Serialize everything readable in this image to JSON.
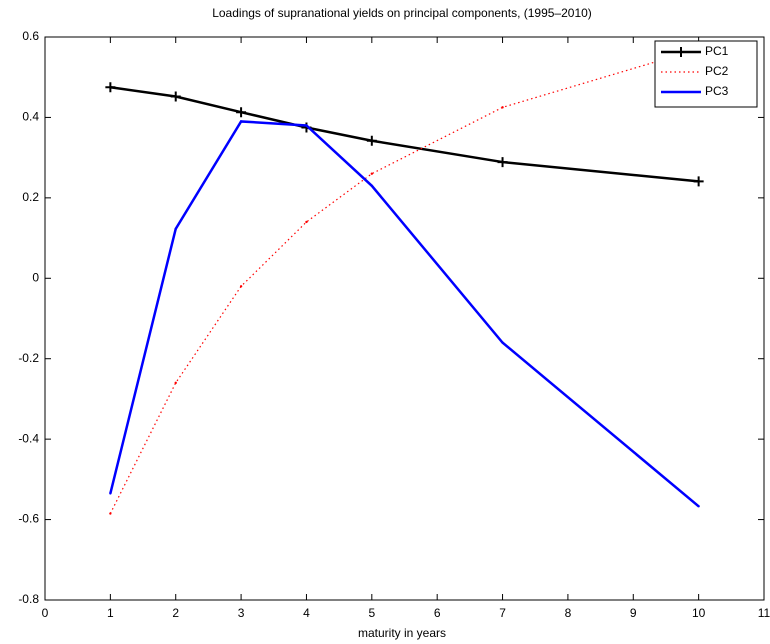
{
  "chart_data": {
    "type": "line",
    "title": "Loadings of supranational yields on principal components, (1995–2010)",
    "x_label": "maturity in years",
    "x": [
      1,
      2,
      3,
      4,
      5,
      7,
      10
    ],
    "series": [
      {
        "name": "PC1",
        "color": "#000000",
        "style": "solid-plus",
        "values": [
          0.475,
          0.452,
          0.413,
          0.375,
          0.342,
          0.289,
          0.241
        ]
      },
      {
        "name": "PC2",
        "color": "#ff0000",
        "style": "dotted",
        "values": [
          -0.585,
          -0.26,
          -0.02,
          0.14,
          0.26,
          0.425,
          0.57
        ]
      },
      {
        "name": "PC3",
        "color": "#0000ff",
        "style": "solid",
        "values": [
          -0.535,
          0.123,
          0.39,
          0.38,
          0.23,
          -0.16,
          -0.567
        ]
      }
    ],
    "xlim": [
      0,
      11
    ],
    "xticks": [
      0,
      1,
      2,
      3,
      4,
      5,
      6,
      7,
      8,
      9,
      10,
      11
    ],
    "ylim": [
      -0.8,
      0.6
    ],
    "yticks": [
      -0.8,
      -0.6,
      -0.4,
      -0.2,
      0,
      0.2,
      0.4,
      0.6
    ],
    "grid": false,
    "legend": "top-right"
  }
}
